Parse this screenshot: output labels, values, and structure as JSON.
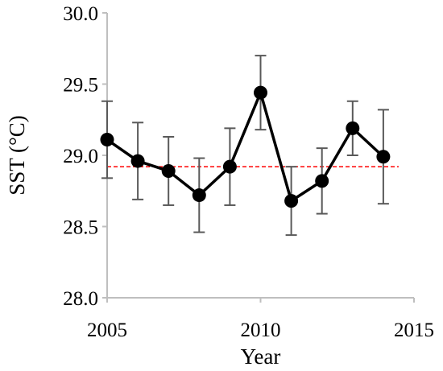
{
  "chart_data": {
    "type": "line",
    "title": "",
    "xlabel": "Year",
    "ylabel": "SST (°C)",
    "xlim": [
      2005,
      2015
    ],
    "ylim": [
      28.0,
      30.0
    ],
    "x_ticks": [
      "2005",
      "2010",
      "2015"
    ],
    "y_ticks": [
      "28.0",
      "28.5",
      "29.0",
      "29.5",
      "30.0"
    ],
    "grid": false,
    "legend": "none",
    "series": [
      {
        "x": [
          2005,
          2006,
          2007,
          2008,
          2009,
          2010,
          2011,
          2012,
          2013,
          2014
        ],
        "y": [
          29.11,
          28.96,
          28.89,
          28.72,
          28.92,
          29.44,
          28.68,
          28.82,
          29.19,
          28.99
        ],
        "error": [
          0.27,
          0.27,
          0.24,
          0.26,
          0.27,
          0.26,
          0.24,
          0.23,
          0.19,
          0.33
        ],
        "color": "#000000",
        "errorbar_color": "#595959",
        "marker": "circle"
      }
    ],
    "reference_line": {
      "y": 28.92,
      "style": "dashed",
      "color": "#ff0000"
    },
    "axis_color": "#bfbfbf"
  }
}
